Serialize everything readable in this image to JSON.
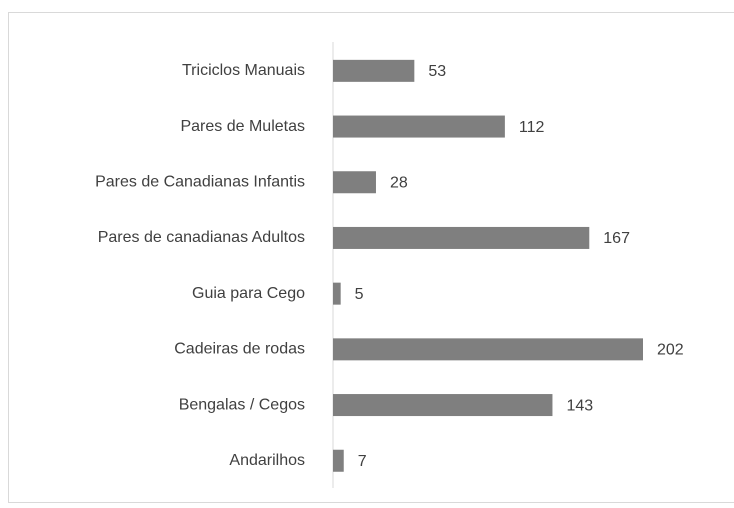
{
  "chart_data": {
    "type": "bar",
    "orientation": "horizontal",
    "categories": [
      "Triciclos Manuais",
      "Pares de Muletas",
      "Pares de Canadianas Infantis",
      "Pares de canadianas Adultos",
      "Guia para Cego",
      "Cadeiras de rodas",
      "Bengalas / Cegos",
      "Andarilhos"
    ],
    "values": [
      53,
      112,
      28,
      167,
      5,
      202,
      143,
      7
    ],
    "color": "#7f7f7f",
    "grid": false
  }
}
